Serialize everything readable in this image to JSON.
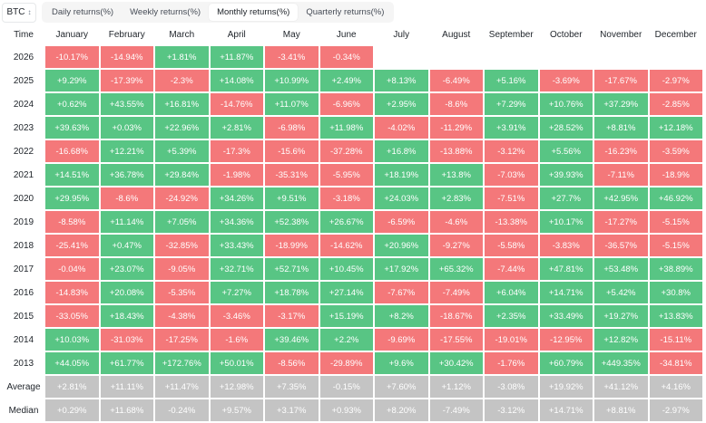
{
  "asset_select": {
    "value": "BTC",
    "icon": "chevron-updown-icon"
  },
  "tabs": [
    {
      "label": "Daily returns(%)",
      "active": false
    },
    {
      "label": "Weekly returns(%)",
      "active": false
    },
    {
      "label": "Monthly returns(%)",
      "active": true
    },
    {
      "label": "Quarterly returns(%)",
      "active": false
    }
  ],
  "colors": {
    "positive": "#58c584",
    "negative": "#f4787a",
    "summary": "#c4c4c4"
  },
  "table": {
    "time_header": "Time",
    "months": [
      "January",
      "February",
      "March",
      "April",
      "May",
      "June",
      "July",
      "August",
      "September",
      "October",
      "November",
      "December"
    ],
    "rows": [
      {
        "label": "2026",
        "values": [
          "-10.17%",
          "-14.94%",
          "+1.81%",
          "+11.87%",
          "-3.41%",
          "-0.34%",
          "",
          "",
          "",
          "",
          "",
          ""
        ]
      },
      {
        "label": "2025",
        "values": [
          "+9.29%",
          "-17.39%",
          "-2.3%",
          "+14.08%",
          "+10.99%",
          "+2.49%",
          "+8.13%",
          "-6.49%",
          "+5.16%",
          "-3.69%",
          "-17.67%",
          "-2.97%"
        ]
      },
      {
        "label": "2024",
        "values": [
          "+0.62%",
          "+43.55%",
          "+16.81%",
          "-14.76%",
          "+11.07%",
          "-6.96%",
          "+2.95%",
          "-8.6%",
          "+7.29%",
          "+10.76%",
          "+37.29%",
          "-2.85%"
        ]
      },
      {
        "label": "2023",
        "values": [
          "+39.63%",
          "+0.03%",
          "+22.96%",
          "+2.81%",
          "-6.98%",
          "+11.98%",
          "-4.02%",
          "-11.29%",
          "+3.91%",
          "+28.52%",
          "+8.81%",
          "+12.18%"
        ]
      },
      {
        "label": "2022",
        "values": [
          "-16.68%",
          "+12.21%",
          "+5.39%",
          "-17.3%",
          "-15.6%",
          "-37.28%",
          "+16.8%",
          "-13.88%",
          "-3.12%",
          "+5.56%",
          "-16.23%",
          "-3.59%"
        ]
      },
      {
        "label": "2021",
        "values": [
          "+14.51%",
          "+36.78%",
          "+29.84%",
          "-1.98%",
          "-35.31%",
          "-5.95%",
          "+18.19%",
          "+13.8%",
          "-7.03%",
          "+39.93%",
          "-7.11%",
          "-18.9%"
        ]
      },
      {
        "label": "2020",
        "values": [
          "+29.95%",
          "-8.6%",
          "-24.92%",
          "+34.26%",
          "+9.51%",
          "-3.18%",
          "+24.03%",
          "+2.83%",
          "-7.51%",
          "+27.7%",
          "+42.95%",
          "+46.92%"
        ]
      },
      {
        "label": "2019",
        "values": [
          "-8.58%",
          "+11.14%",
          "+7.05%",
          "+34.36%",
          "+52.38%",
          "+26.67%",
          "-6.59%",
          "-4.6%",
          "-13.38%",
          "+10.17%",
          "-17.27%",
          "-5.15%"
        ]
      },
      {
        "label": "2018",
        "values": [
          "-25.41%",
          "+0.47%",
          "-32.85%",
          "+33.43%",
          "-18.99%",
          "-14.62%",
          "+20.96%",
          "-9.27%",
          "-5.58%",
          "-3.83%",
          "-36.57%",
          "-5.15%"
        ]
      },
      {
        "label": "2017",
        "values": [
          "-0.04%",
          "+23.07%",
          "-9.05%",
          "+32.71%",
          "+52.71%",
          "+10.45%",
          "+17.92%",
          "+65.32%",
          "-7.44%",
          "+47.81%",
          "+53.48%",
          "+38.89%"
        ]
      },
      {
        "label": "2016",
        "values": [
          "-14.83%",
          "+20.08%",
          "-5.35%",
          "+7.27%",
          "+18.78%",
          "+27.14%",
          "-7.67%",
          "-7.49%",
          "+6.04%",
          "+14.71%",
          "+5.42%",
          "+30.8%"
        ]
      },
      {
        "label": "2015",
        "values": [
          "-33.05%",
          "+18.43%",
          "-4.38%",
          "-3.46%",
          "-3.17%",
          "+15.19%",
          "+8.2%",
          "-18.67%",
          "+2.35%",
          "+33.49%",
          "+19.27%",
          "+13.83%"
        ]
      },
      {
        "label": "2014",
        "values": [
          "+10.03%",
          "-31.03%",
          "-17.25%",
          "-1.6%",
          "+39.46%",
          "+2.2%",
          "-9.69%",
          "-17.55%",
          "-19.01%",
          "-12.95%",
          "+12.82%",
          "-15.11%"
        ]
      },
      {
        "label": "2013",
        "values": [
          "+44.05%",
          "+61.77%",
          "+172.76%",
          "+50.01%",
          "-8.56%",
          "-29.89%",
          "+9.6%",
          "+30.42%",
          "-1.76%",
          "+60.79%",
          "+449.35%",
          "-34.81%"
        ]
      }
    ],
    "summary": [
      {
        "label": "Average",
        "values": [
          "+2.81%",
          "+11.11%",
          "+11.47%",
          "+12.98%",
          "+7.35%",
          "-0.15%",
          "+7.60%",
          "+1.12%",
          "-3.08%",
          "+19.92%",
          "+41.12%",
          "+4.16%"
        ]
      },
      {
        "label": "Median",
        "values": [
          "+0.29%",
          "+11.68%",
          "-0.24%",
          "+9.57%",
          "+3.17%",
          "+0.93%",
          "+8.20%",
          "-7.49%",
          "-3.12%",
          "+14.71%",
          "+8.81%",
          "-2.97%"
        ]
      }
    ]
  }
}
